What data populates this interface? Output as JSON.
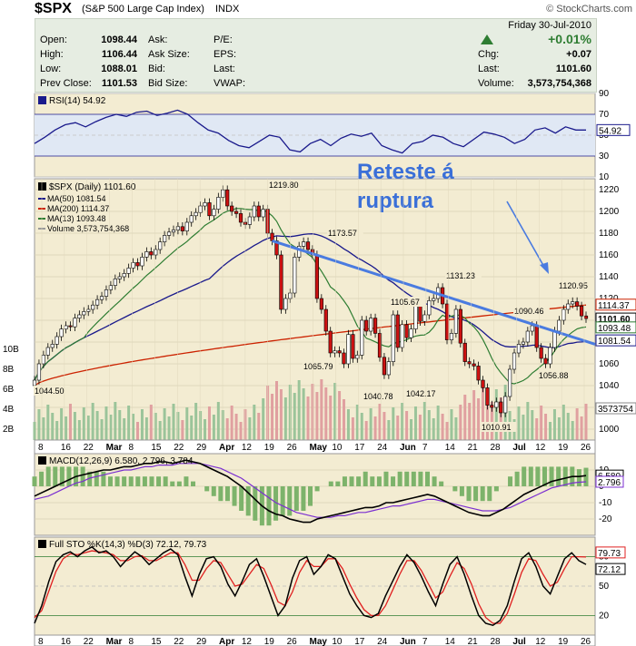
{
  "header": {
    "symbol": "$SPX",
    "name": "(S&P 500 Large Cap Index)",
    "exchange": "INDX",
    "copyright": "© StockCharts.com"
  },
  "quote": {
    "open_label": "Open:",
    "open": "1098.44",
    "high_label": "High:",
    "high": "1106.44",
    "low_label": "Low:",
    "low": "1088.01",
    "prev_label": "Prev Close:",
    "prev": "1101.53",
    "ask_label": "Ask:",
    "ask_size_label": "Ask Size:",
    "bid_label": "Bid:",
    "bid_size_label": "Bid Size:",
    "pe_label": "P/E:",
    "eps_label": "EPS:",
    "last_label1": "Last:",
    "vwap_label": "VWAP:",
    "date": "Friday   30-Jul-2010",
    "pct": "+0.01%",
    "chg_label": "Chg:",
    "chg": "+0.07",
    "last_label": "Last:",
    "last": "1101.60",
    "volume_label": "Volume:",
    "volume": "3,573,754,368",
    "up_color": "#2e7d32"
  },
  "chart_data": [
    {
      "type": "line",
      "panel": "RSI",
      "title": "RSI(14) 54.92",
      "ylim": [
        10,
        90
      ],
      "y_ticks": [
        "90",
        "70",
        "50",
        "30",
        "10"
      ],
      "current": "54.92",
      "series": [
        {
          "name": "RSI(14)",
          "values": [
            42,
            48,
            55,
            60,
            62,
            58,
            63,
            67,
            70,
            68,
            72,
            73,
            69,
            71,
            74,
            70,
            62,
            55,
            52,
            45,
            40,
            38,
            44,
            50,
            48,
            36,
            34,
            42,
            46,
            40,
            47,
            51,
            49,
            52,
            40,
            36,
            33,
            42,
            44,
            50,
            48,
            42,
            39,
            46,
            53,
            51,
            48,
            42,
            46,
            55,
            57,
            52,
            58,
            55,
            54.92
          ]
        }
      ]
    },
    {
      "type": "candlestick",
      "panel": "price",
      "title": "$SPX (Daily) 1101.60",
      "legend": [
        {
          "name": "MA(50) 1081.54",
          "color": "#1a1a8c"
        },
        {
          "name": "MA(200) 1114.37",
          "color": "#cc2200"
        },
        {
          "name": "MA(13) 1093.48",
          "color": "#2e7d32"
        },
        {
          "name": "Volume 3,573,754,368",
          "color": "#999999"
        }
      ],
      "ylim": [
        990,
        1230
      ],
      "y_ticks": [
        "1220",
        "1200",
        "1180",
        "1160",
        "1140",
        "1120",
        "1100",
        "1080",
        "1060",
        "1040",
        "1020",
        "1000"
      ],
      "vol_ticks": [
        "10B",
        "8B",
        "6B",
        "4B",
        "2B"
      ],
      "x_ticks": [
        "8",
        "16",
        "22",
        "Mar",
        "8",
        "15",
        "22",
        "29",
        "Apr",
        "12",
        "19",
        "26",
        "May",
        "10",
        "17",
        "24",
        "Jun",
        "7",
        "14",
        "21",
        "28",
        "Jul",
        "12",
        "19",
        "26"
      ],
      "closes": [
        1045,
        1060,
        1068,
        1075,
        1078,
        1085,
        1092,
        1095,
        1094,
        1102,
        1105,
        1108,
        1110,
        1114,
        1119,
        1122,
        1128,
        1132,
        1138,
        1140,
        1143,
        1148,
        1153,
        1150,
        1158,
        1163,
        1160,
        1165,
        1172,
        1178,
        1181,
        1183,
        1186,
        1182,
        1190,
        1196,
        1199,
        1205,
        1208,
        1196,
        1202,
        1213,
        1219.8,
        1205,
        1200,
        1198,
        1190,
        1188,
        1195,
        1205,
        1195,
        1202,
        1180,
        1173,
        1160,
        1110,
        1120,
        1125,
        1158,
        1168,
        1172,
        1165,
        1160,
        1120,
        1110,
        1090,
        1070,
        1072,
        1070,
        1060,
        1087,
        1065,
        1068,
        1100,
        1090,
        1102,
        1088,
        1066,
        1050,
        1062,
        1105,
        1075,
        1096,
        1084,
        1092,
        1116,
        1099,
        1105,
        1118,
        1120,
        1130,
        1115,
        1082,
        1088,
        1110,
        1079,
        1062,
        1060,
        1058,
        1045,
        1038,
        1022,
        1020,
        1025,
        1015,
        1030,
        1055,
        1070,
        1078,
        1080,
        1090,
        1095,
        1075,
        1065,
        1060,
        1075,
        1090,
        1100,
        1110,
        1115,
        1117,
        1113,
        1104,
        1101.6
      ],
      "labels": [
        "1219.80",
        "1173.57",
        "1131.23",
        "1105.67",
        "1090.46",
        "1120.95",
        "1065.79",
        "1044.50",
        "1040.78",
        "1042.17",
        "1010.91",
        "1056.88"
      ],
      "right_labels": [
        "1114.37",
        "1101.60",
        "1093.48",
        "1081.54",
        "3573754"
      ],
      "annotation": "Reteste á ruptura",
      "annotation_color": "#3a6fd8"
    },
    {
      "type": "line",
      "panel": "MACD",
      "title": "MACD(12,26,9) 6.580, 2.796, 3.784",
      "ylim": [
        -30,
        20
      ],
      "y_ticks": [
        "10",
        "0",
        "-10",
        "-20"
      ],
      "right_labels": [
        "6.580",
        "2.796"
      ],
      "series": [
        {
          "name": "MACD",
          "color": "#000000",
          "values": [
            -6,
            -4,
            -2,
            0,
            2,
            4,
            6,
            7,
            8,
            9,
            10,
            10,
            11,
            12,
            12,
            13,
            14,
            14,
            15,
            15,
            14,
            15,
            16,
            15,
            14,
            12,
            10,
            8,
            6,
            3,
            0,
            -4,
            -8,
            -12,
            -15,
            -17,
            -18,
            -20,
            -21,
            -22,
            -22,
            -20,
            -19,
            -18,
            -17,
            -16,
            -15,
            -14,
            -13,
            -13,
            -12,
            -10,
            -10,
            -9,
            -8,
            -7,
            -6,
            -5,
            -6,
            -8,
            -10,
            -12,
            -14,
            -16,
            -17,
            -18,
            -18,
            -16,
            -14,
            -11,
            -8,
            -5,
            -3,
            -1,
            1,
            3,
            4,
            5,
            6,
            6,
            6.58
          ]
        },
        {
          "name": "Signal",
          "color": "#7b2fd1",
          "values": [
            -8,
            -7,
            -6,
            -4,
            -2,
            0,
            2,
            3,
            5,
            6,
            7,
            8,
            9,
            10,
            10,
            11,
            12,
            12,
            13,
            13,
            13,
            14,
            14,
            14,
            14,
            13,
            12,
            11,
            9,
            7,
            5,
            2,
            -1,
            -4,
            -7,
            -10,
            -12,
            -14,
            -16,
            -17,
            -18,
            -19,
            -19,
            -19,
            -18,
            -18,
            -17,
            -16,
            -16,
            -15,
            -14,
            -13,
            -12,
            -12,
            -11,
            -10,
            -9,
            -8,
            -8,
            -9,
            -10,
            -11,
            -12,
            -13,
            -14,
            -15,
            -15,
            -15,
            -14,
            -13,
            -11,
            -9,
            -7,
            -5,
            -3,
            -1,
            0,
            1,
            2,
            2.5,
            2.796
          ]
        }
      ],
      "histogram_color": "#7db36b"
    },
    {
      "type": "line",
      "panel": "STO",
      "title": "Full STO %K(14,3) %D(3) 72.12, 79.73",
      "ylim": [
        0,
        100
      ],
      "y_ticks": [
        "80",
        "50",
        "20"
      ],
      "right_labels": [
        "79.73",
        "72.12"
      ],
      "series": [
        {
          "name": "%K",
          "color": "#000000",
          "values": [
            12,
            30,
            55,
            75,
            82,
            85,
            80,
            86,
            90,
            84,
            86,
            80,
            70,
            78,
            85,
            80,
            72,
            78,
            84,
            88,
            82,
            60,
            40,
            62,
            78,
            80,
            70,
            52,
            40,
            55,
            72,
            78,
            60,
            40,
            20,
            30,
            58,
            76,
            80,
            62,
            70,
            82,
            78,
            60,
            42,
            30,
            20,
            18,
            22,
            40,
            55,
            70,
            82,
            74,
            60,
            44,
            30,
            52,
            72,
            80,
            62,
            40,
            20,
            12,
            10,
            15,
            30,
            55,
            78,
            84,
            70,
            50,
            42,
            60,
            78,
            84,
            76,
            72.12
          ]
        },
        {
          "name": "%D",
          "color": "#e02020",
          "values": [
            18,
            25,
            45,
            65,
            78,
            83,
            82,
            84,
            86,
            85,
            84,
            82,
            76,
            76,
            80,
            81,
            76,
            76,
            80,
            84,
            84,
            72,
            56,
            56,
            68,
            76,
            74,
            62,
            50,
            52,
            62,
            72,
            68,
            52,
            34,
            30,
            44,
            64,
            76,
            70,
            70,
            78,
            78,
            68,
            52,
            38,
            26,
            20,
            20,
            30,
            46,
            62,
            76,
            76,
            66,
            52,
            38,
            44,
            60,
            74,
            68,
            52,
            32,
            18,
            12,
            12,
            22,
            42,
            64,
            78,
            76,
            62,
            50,
            54,
            68,
            80,
            80,
            79.73
          ]
        }
      ]
    }
  ]
}
